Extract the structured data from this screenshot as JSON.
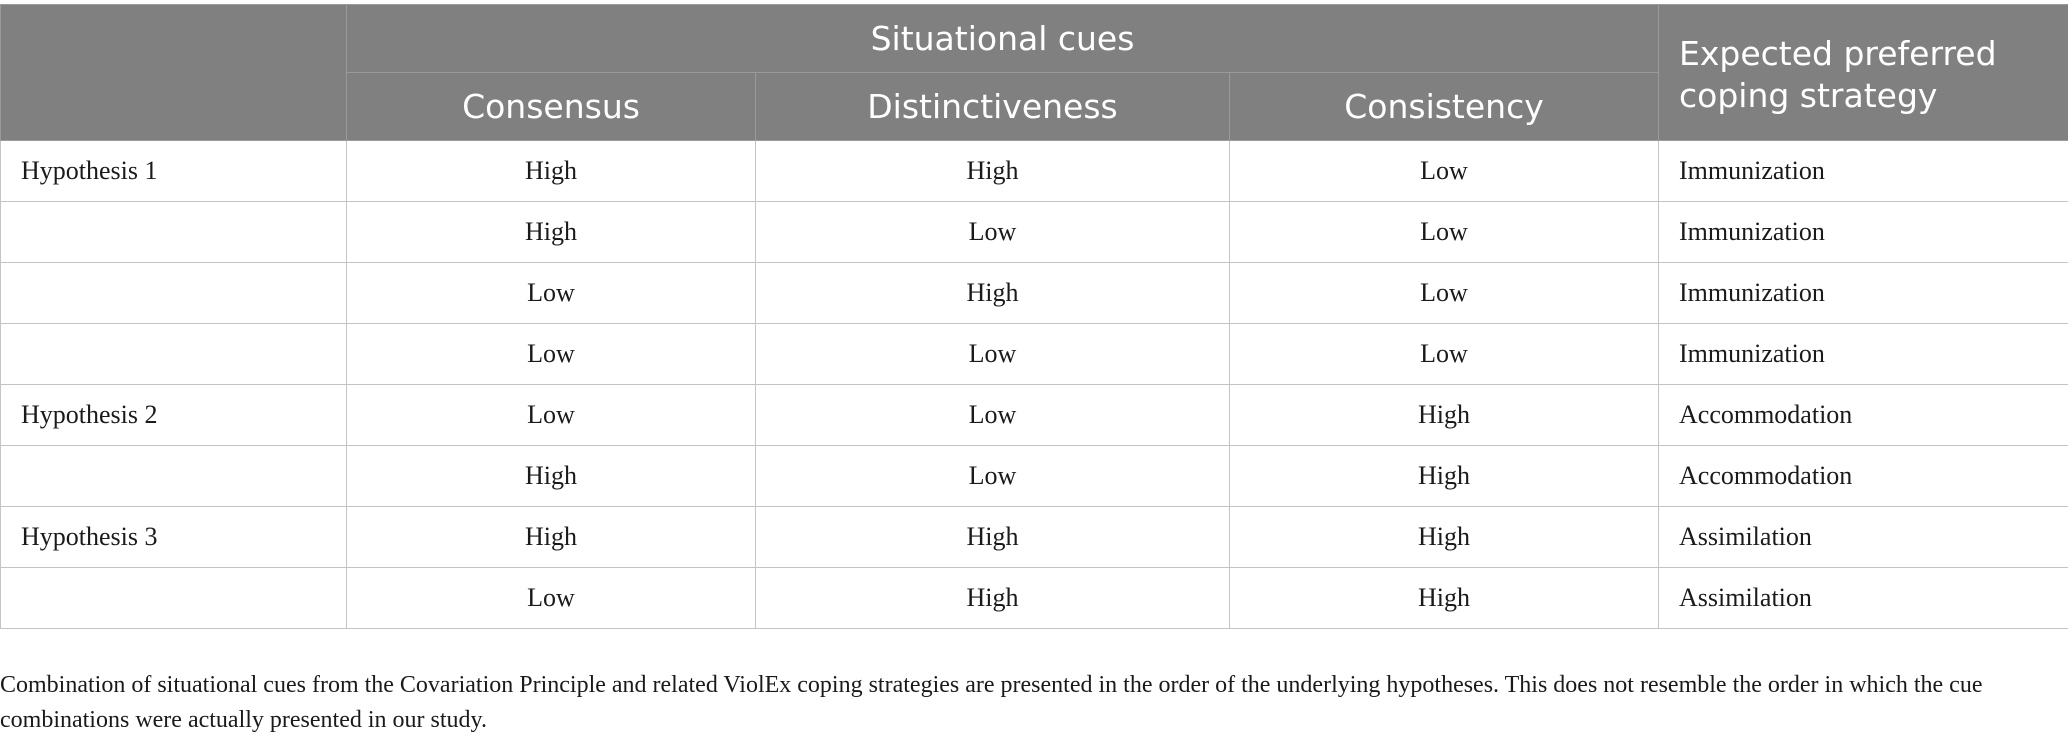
{
  "table": {
    "group_header": "Situational cues",
    "columns": [
      "Consensus",
      "Distinctiveness",
      "Consistency"
    ],
    "expected_header": "Expected preferred coping strategy",
    "rows": [
      {
        "label": "Hypothesis 1",
        "consensus": "High",
        "distinctiveness": "High",
        "consistency": "Low",
        "strategy": "Immunization"
      },
      {
        "label": "",
        "consensus": "High",
        "distinctiveness": "Low",
        "consistency": "Low",
        "strategy": "Immunization"
      },
      {
        "label": "",
        "consensus": "Low",
        "distinctiveness": "High",
        "consistency": "Low",
        "strategy": "Immunization"
      },
      {
        "label": "",
        "consensus": "Low",
        "distinctiveness": "Low",
        "consistency": "Low",
        "strategy": "Immunization"
      },
      {
        "label": "Hypothesis 2",
        "consensus": "Low",
        "distinctiveness": "Low",
        "consistency": "High",
        "strategy": "Accommodation"
      },
      {
        "label": "",
        "consensus": "High",
        "distinctiveness": "Low",
        "consistency": "High",
        "strategy": "Accommodation"
      },
      {
        "label": "Hypothesis 3",
        "consensus": "High",
        "distinctiveness": "High",
        "consistency": "High",
        "strategy": "Assimilation"
      },
      {
        "label": "",
        "consensus": "Low",
        "distinctiveness": "High",
        "consistency": "High",
        "strategy": "Assimilation"
      }
    ]
  },
  "footnote": "Combination of situational cues from the Covariation Principle and related ViolEx coping strategies are presented in the order of the underlying hypotheses. This does not resemble the order in which the cue combinations were actually presented in our study."
}
